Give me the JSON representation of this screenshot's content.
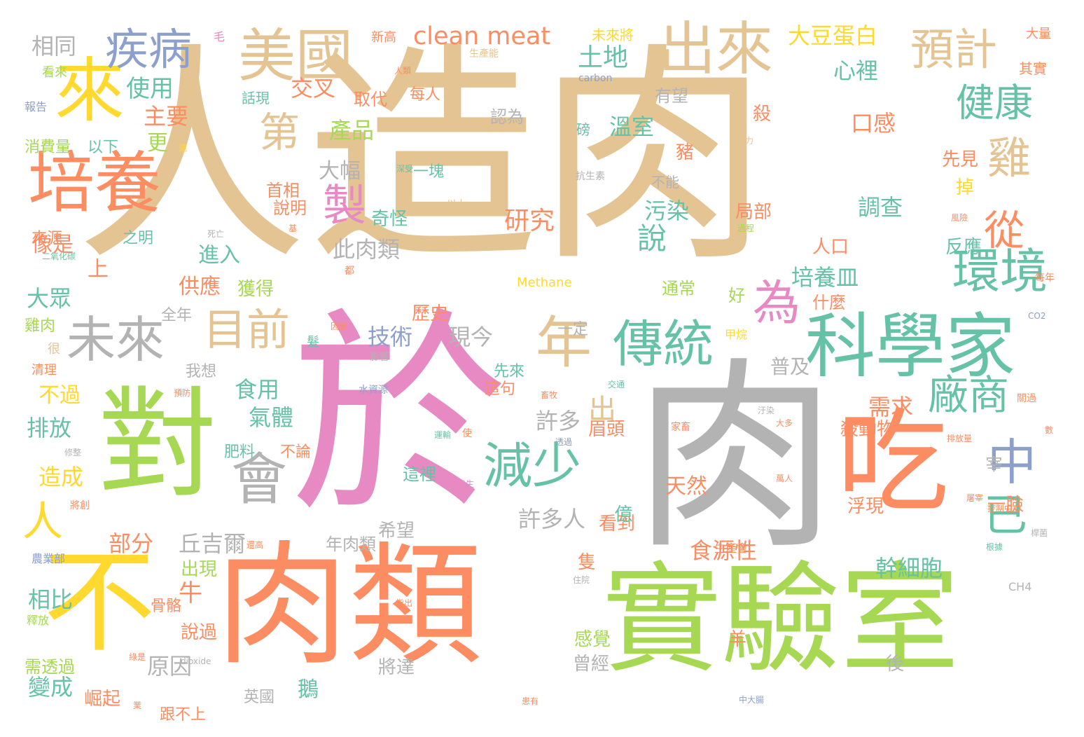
{
  "palette": {
    "tan": "#e5c494",
    "pink": "#e78ac3",
    "gray": "#b3b3b3",
    "orange": "#fc8d62",
    "green": "#a6d854",
    "teal": "#66c2a5",
    "blue": "#8da0cb",
    "yellow": "#ffd92f"
  },
  "words": [
    {
      "text": "人造肉"
    },
    {
      "text": "於"
    },
    {
      "text": "肉"
    },
    {
      "text": "肉類"
    },
    {
      "text": "實驗室"
    },
    {
      "text": "對"
    },
    {
      "text": "不"
    },
    {
      "text": "吃"
    },
    {
      "text": "科學家"
    },
    {
      "text": "培養"
    },
    {
      "text": "美國"
    },
    {
      "text": "出來"
    },
    {
      "text": "來"
    },
    {
      "text": "疾病"
    },
    {
      "text": "預計"
    },
    {
      "text": "未來"
    },
    {
      "text": "目前"
    },
    {
      "text": "年"
    },
    {
      "text": "傳統"
    },
    {
      "text": "減少"
    },
    {
      "text": "會"
    },
    {
      "text": "環境"
    },
    {
      "text": "廠商"
    },
    {
      "text": "第"
    },
    {
      "text": "健康"
    },
    {
      "text": "雞"
    },
    {
      "text": "從"
    },
    {
      "text": "中"
    },
    {
      "text": "已"
    },
    {
      "text": "為"
    },
    {
      "text": "製"
    },
    {
      "text": "人"
    },
    {
      "text": "clean meat"
    },
    {
      "text": "大豆蛋白"
    },
    {
      "text": "說"
    },
    {
      "text": "研究"
    },
    {
      "text": "使用"
    },
    {
      "text": "主要"
    },
    {
      "text": "交叉"
    },
    {
      "text": "產品"
    },
    {
      "text": "溫室"
    },
    {
      "text": "土地"
    },
    {
      "text": "心裡"
    },
    {
      "text": "口感"
    },
    {
      "text": "調查"
    },
    {
      "text": "污染"
    },
    {
      "text": "此肉類"
    },
    {
      "text": "培養皿"
    },
    {
      "text": "技術"
    },
    {
      "text": "現今"
    },
    {
      "text": "食用"
    },
    {
      "text": "氣體"
    },
    {
      "text": "許多"
    },
    {
      "text": "出"
    },
    {
      "text": "許多人"
    },
    {
      "text": "需求"
    },
    {
      "text": "食源性"
    },
    {
      "text": "幹細胞"
    },
    {
      "text": "部分"
    },
    {
      "text": "丘吉爾"
    },
    {
      "text": "排放"
    },
    {
      "text": "造成"
    },
    {
      "text": "相比"
    },
    {
      "text": "變成"
    },
    {
      "text": "原因"
    },
    {
      "text": "牛"
    },
    {
      "text": "相同"
    },
    {
      "text": "大眾"
    },
    {
      "text": "像是"
    },
    {
      "text": "上"
    },
    {
      "text": "更"
    },
    {
      "text": "大幅"
    },
    {
      "text": "進入"
    },
    {
      "text": "供應"
    },
    {
      "text": "不過"
    },
    {
      "text": "天然"
    },
    {
      "text": "普及"
    },
    {
      "text": "鵝"
    },
    {
      "text": "說過"
    },
    {
      "text": "出現"
    },
    {
      "text": "殺動物"
    },
    {
      "text": "眉頭"
    },
    {
      "text": "一臉"
    },
    {
      "text": "浮現"
    },
    {
      "text": "希望"
    },
    {
      "text": "看到"
    },
    {
      "text": "億"
    },
    {
      "text": "隻"
    },
    {
      "text": "感覺"
    },
    {
      "text": "曾經"
    },
    {
      "text": "後"
    },
    {
      "text": "羊"
    },
    {
      "text": "將達"
    },
    {
      "text": "英國"
    },
    {
      "text": "崛起"
    },
    {
      "text": "跟不上"
    },
    {
      "text": "需透過"
    },
    {
      "text": "骨骼"
    },
    {
      "text": "年肉類"
    },
    {
      "text": "這裡"
    },
    {
      "text": "宰"
    },
    {
      "text": "獲得"
    },
    {
      "text": "雞肉"
    },
    {
      "text": "全年"
    },
    {
      "text": "我想"
    },
    {
      "text": "不論"
    },
    {
      "text": "肥料"
    },
    {
      "text": "先來"
    },
    {
      "text": "一定"
    },
    {
      "text": "這句"
    },
    {
      "text": "人口"
    },
    {
      "text": "什麼"
    },
    {
      "text": "好"
    },
    {
      "text": "通常"
    },
    {
      "text": "歷史"
    },
    {
      "text": "反應"
    },
    {
      "text": "先見"
    },
    {
      "text": "掉"
    },
    {
      "text": "局部"
    },
    {
      "text": "殺"
    },
    {
      "text": "豬"
    },
    {
      "text": "有望"
    },
    {
      "text": "每人"
    },
    {
      "text": "取代"
    },
    {
      "text": "認為"
    },
    {
      "text": "磅"
    },
    {
      "text": "不能"
    },
    {
      "text": "一塊"
    },
    {
      "text": "奇怪"
    },
    {
      "text": "說明"
    },
    {
      "text": "首相"
    },
    {
      "text": "之明"
    },
    {
      "text": "來源"
    },
    {
      "text": "話現"
    },
    {
      "text": "以下"
    },
    {
      "text": "消費量"
    },
    {
      "text": "報告"
    },
    {
      "text": "看來"
    },
    {
      "text": "毛"
    },
    {
      "text": "新高"
    },
    {
      "text": "未來將"
    },
    {
      "text": "大量"
    },
    {
      "text": "其實"
    },
    {
      "text": "人類"
    },
    {
      "text": "carbon"
    },
    {
      "text": "生產能"
    },
    {
      "text": "Methane"
    },
    {
      "text": "抗生素"
    },
    {
      "text": "深受"
    },
    {
      "text": "以上"
    },
    {
      "text": "還"
    },
    {
      "text": "致力"
    },
    {
      "text": "死亡"
    },
    {
      "text": "基"
    },
    {
      "text": "過程"
    },
    {
      "text": "風險"
    },
    {
      "text": "二氧化碳"
    },
    {
      "text": "都"
    },
    {
      "text": "每年"
    },
    {
      "text": "CO2"
    },
    {
      "text": "因素"
    },
    {
      "text": "髮"
    },
    {
      "text": "很"
    },
    {
      "text": "清理"
    },
    {
      "text": "影響"
    },
    {
      "text": "甲烷"
    },
    {
      "text": "交通"
    },
    {
      "text": "預防"
    },
    {
      "text": "水資源"
    },
    {
      "text": "畜牧"
    },
    {
      "text": "運輸"
    },
    {
      "text": "使"
    },
    {
      "text": "透過"
    },
    {
      "text": "汙染"
    },
    {
      "text": "大多"
    },
    {
      "text": "家畜"
    },
    {
      "text": "排放量"
    },
    {
      "text": "關過"
    },
    {
      "text": "數"
    },
    {
      "text": "修整"
    },
    {
      "text": "將創"
    },
    {
      "text": "發生"
    },
    {
      "text": "萬人"
    },
    {
      "text": "控制中心"
    },
    {
      "text": "屠宰"
    },
    {
      "text": "桿菌"
    },
    {
      "text": "生產會"
    },
    {
      "text": "還高"
    },
    {
      "text": "農業部"
    },
    {
      "text": "根據"
    },
    {
      "text": "CH4"
    },
    {
      "text": "住院"
    },
    {
      "text": "指出"
    },
    {
      "text": "釋放"
    },
    {
      "text": "綠是"
    },
    {
      "text": "dioxide"
    },
    {
      "text": "業"
    },
    {
      "text": "患有"
    },
    {
      "text": "中大腸"
    }
  ]
}
